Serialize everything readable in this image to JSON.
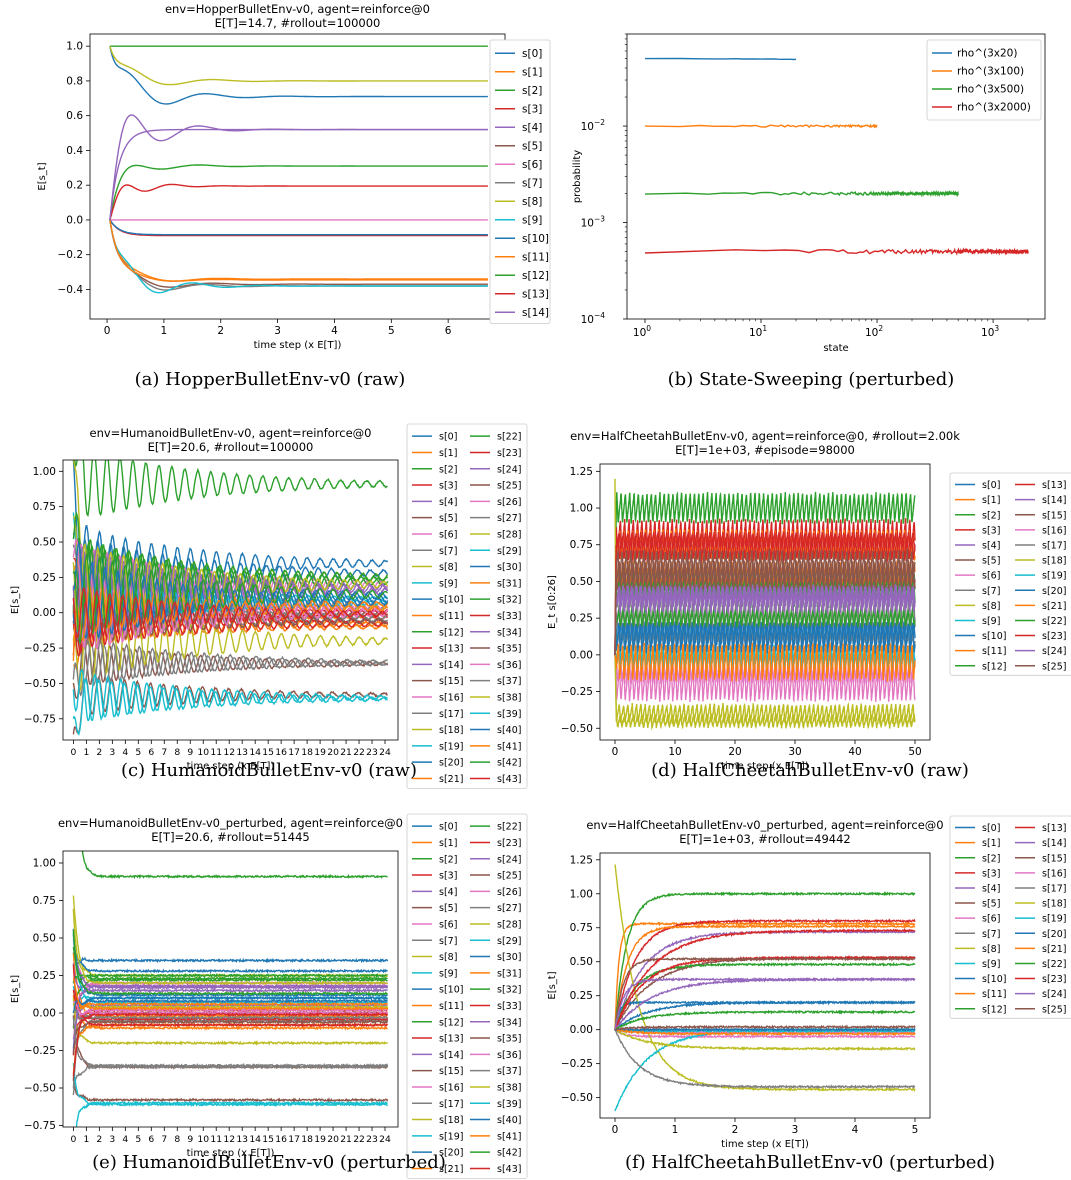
{
  "colors": [
    "#1f77b4",
    "#ff7f0e",
    "#2ca02c",
    "#d62728",
    "#9467bd",
    "#8c564b",
    "#e377c2",
    "#7f7f7f",
    "#bcbd22",
    "#17becf"
  ],
  "chart_data": [
    {
      "id": "a",
      "type": "line",
      "title": "env=HopperBulletEnv-v0, agent=reinforce@0",
      "subtitle": "E[T]=14.7, #rollout=100000",
      "xlabel": "time step (x E[T])",
      "ylabel": "E[s_t]",
      "xlim": [
        -0.3,
        7.0
      ],
      "ylim": [
        -0.57,
        1.07
      ],
      "xticks": [
        0,
        1,
        2,
        3,
        4,
        5,
        6
      ],
      "yticks": [
        -0.4,
        -0.2,
        0.0,
        0.2,
        0.4,
        0.6,
        0.8,
        1.0
      ],
      "ytick_labels": [
        "−0.4",
        "−0.2",
        "0.0",
        "0.2",
        "0.4",
        "0.6",
        "0.8",
        "1.0"
      ],
      "legend": "outside-right",
      "legend_cols": 1,
      "x_end": 6.7,
      "series": [
        {
          "name": "s[0]",
          "start": 1.0,
          "final": 0.71,
          "osc": 0.18,
          "period": 1.4,
          "decay": 1.0
        },
        {
          "name": "s[1]",
          "start": 0.0,
          "final": -0.34,
          "osc": 0.06,
          "period": 1.6,
          "decay": 1.0
        },
        {
          "name": "s[2]",
          "start": 1.0,
          "final": 1.0,
          "osc": 0.0,
          "period": 1.0,
          "decay": 1.0
        },
        {
          "name": "s[3]",
          "start": 0.0,
          "final": -0.09,
          "osc": 0.0,
          "period": 1.0,
          "decay": 1.0
        },
        {
          "name": "s[4]",
          "start": 0.0,
          "final": 0.52,
          "osc": 0.3,
          "period": 1.3,
          "decay": 1.2
        },
        {
          "name": "s[5]",
          "start": 0.0,
          "final": -0.37,
          "osc": 0.08,
          "period": 1.5,
          "decay": 1.0
        },
        {
          "name": "s[6]",
          "start": 0.0,
          "final": 0.0,
          "osc": 0.0,
          "period": 1.0,
          "decay": 1.0
        },
        {
          "name": "s[7]",
          "start": 0.0,
          "final": -0.38,
          "osc": 0.1,
          "period": 1.4,
          "decay": 1.0
        },
        {
          "name": "s[8]",
          "start": 1.0,
          "final": 0.8,
          "osc": 0.1,
          "period": 1.5,
          "decay": 1.0
        },
        {
          "name": "s[9]",
          "start": 0.0,
          "final": -0.38,
          "osc": 0.14,
          "period": 1.2,
          "decay": 1.0
        },
        {
          "name": "s[10]",
          "start": 0.0,
          "final": -0.085,
          "osc": 0.0,
          "period": 1.0,
          "decay": 1.0
        },
        {
          "name": "s[11]",
          "start": 0.0,
          "final": -0.345,
          "osc": 0.04,
          "period": 1.6,
          "decay": 1.0
        },
        {
          "name": "s[12]",
          "start": 0.0,
          "final": 0.31,
          "osc": 0.06,
          "period": 1.3,
          "decay": 1.0
        },
        {
          "name": "s[13]",
          "start": 0.0,
          "final": 0.195,
          "osc": 0.1,
          "period": 0.9,
          "decay": 1.5
        },
        {
          "name": "s[14]",
          "start": 0.0,
          "final": 0.52,
          "osc": 0.0,
          "period": 1.0,
          "decay": 1.0
        }
      ]
    },
    {
      "id": "b",
      "type": "line",
      "title": "",
      "subtitle": "",
      "xlabel": "state",
      "ylabel": "probability",
      "xscale": "log",
      "yscale": "log",
      "xlim": [
        0.7,
        2800
      ],
      "ylim": [
        0.0001,
        0.09
      ],
      "xticks": [
        1,
        10,
        100,
        1000
      ],
      "xtick_labels": [
        "10^0",
        "10^1",
        "10^2",
        "10^3"
      ],
      "yticks": [
        0.0001,
        0.001,
        0.01
      ],
      "ytick_labels": [
        "10^-4",
        "10^-3",
        "10^-2"
      ],
      "legend": "upper-right",
      "series": [
        {
          "name": "rho^(3x20)",
          "n": 20,
          "value": 0.05
        },
        {
          "name": "rho^(3x100)",
          "n": 100,
          "value": 0.01
        },
        {
          "name": "rho^(3x500)",
          "n": 500,
          "value": 0.002
        },
        {
          "name": "rho^(3x2000)",
          "n": 2000,
          "value": 0.0005
        }
      ]
    },
    {
      "id": "c",
      "type": "line",
      "title": "env=HumanoidBulletEnv-v0, agent=reinforce@0",
      "subtitle": "E[T]=20.6, #rollout=100000",
      "xlabel": "time step (x E[T])",
      "ylabel": "E[s_t]",
      "xlim": [
        -0.8,
        25.0
      ],
      "ylim": [
        -0.9,
        1.08
      ],
      "xticks": [
        0,
        1,
        2,
        3,
        4,
        5,
        6,
        7,
        8,
        9,
        10,
        11,
        12,
        13,
        14,
        15,
        16,
        17,
        18,
        19,
        20,
        21,
        22,
        23,
        24
      ],
      "yticks": [
        -0.75,
        -0.5,
        -0.25,
        0.0,
        0.25,
        0.5,
        0.75,
        1.0
      ],
      "ytick_labels": [
        "−0.75",
        "−0.50",
        "−0.25",
        "0.00",
        "0.25",
        "0.50",
        "0.75",
        "1.00"
      ],
      "legend": "outside-right",
      "legend_cols": 2,
      "x_end": 24.2,
      "oscillating": true,
      "series": [
        {
          "name": "s[0]",
          "final": 0.35
        },
        {
          "name": "s[1]",
          "final": -0.1
        },
        {
          "name": "s[2]",
          "final": 0.91
        },
        {
          "name": "s[3]",
          "final": 0.02
        },
        {
          "name": "s[4]",
          "final": 0.05
        },
        {
          "name": "s[5]",
          "final": -0.58
        },
        {
          "name": "s[6]",
          "final": 0.18
        },
        {
          "name": "s[7]",
          "final": -0.05
        },
        {
          "name": "s[8]",
          "final": 0.25
        },
        {
          "name": "s[9]",
          "final": 0.1
        },
        {
          "name": "s[10]",
          "final": 0.28
        },
        {
          "name": "s[11]",
          "final": -0.02
        },
        {
          "name": "s[12]",
          "final": 0.22
        },
        {
          "name": "s[13]",
          "final": 0.0
        },
        {
          "name": "s[14]",
          "final": 0.15
        },
        {
          "name": "s[15]",
          "final": -0.36
        },
        {
          "name": "s[16]",
          "final": 0.2
        },
        {
          "name": "s[17]",
          "final": -0.36
        },
        {
          "name": "s[18]",
          "final": 0.04
        },
        {
          "name": "s[19]",
          "final": -0.61
        },
        {
          "name": "s[20]",
          "final": 0.12
        },
        {
          "name": "s[21]",
          "final": -0.08
        },
        {
          "name": "s[22]",
          "final": 0.25
        },
        {
          "name": "s[23]",
          "final": -0.04
        },
        {
          "name": "s[24]",
          "final": 0.17
        },
        {
          "name": "s[25]",
          "final": 0.0
        },
        {
          "name": "s[26]",
          "final": 0.02
        },
        {
          "name": "s[27]",
          "final": -0.03
        },
        {
          "name": "s[28]",
          "final": -0.2
        },
        {
          "name": "s[29]",
          "final": 0.07
        },
        {
          "name": "s[30]",
          "final": 0.1
        },
        {
          "name": "s[31]",
          "final": 0.06
        },
        {
          "name": "s[32]",
          "final": 0.23
        },
        {
          "name": "s[33]",
          "final": -0.08
        },
        {
          "name": "s[34]",
          "final": 0.18
        },
        {
          "name": "s[35]",
          "final": -0.06
        },
        {
          "name": "s[36]",
          "final": 0.0
        },
        {
          "name": "s[37]",
          "final": -0.35
        },
        {
          "name": "s[38]",
          "final": 0.2
        },
        {
          "name": "s[39]",
          "final": -0.6
        },
        {
          "name": "s[40]",
          "final": 0.08
        },
        {
          "name": "s[41]",
          "final": 0.03
        },
        {
          "name": "s[42]",
          "final": 0.13
        },
        {
          "name": "s[43]",
          "final": -0.01
        }
      ]
    },
    {
      "id": "d",
      "type": "line",
      "title": "env=HalfCheetahBulletEnv-v0, agent=reinforce@0, #rollout=2.00k",
      "subtitle": "E[T]=1e+03, #episode=98000",
      "xlabel": "time step (x E[T])",
      "ylabel": "E_t  s[0:26]",
      "xlim": [
        -2.5,
        52.5
      ],
      "ylim": [
        -0.58,
        1.3
      ],
      "xticks": [
        0,
        10,
        20,
        30,
        40,
        50
      ],
      "yticks": [
        -0.5,
        -0.25,
        0.0,
        0.25,
        0.5,
        0.75,
        1.0,
        1.25
      ],
      "ytick_labels": [
        "−0.50",
        "−0.25",
        "0.00",
        "0.25",
        "0.50",
        "0.75",
        "1.00",
        "1.25"
      ],
      "legend": "outside-right",
      "legend_cols": 2,
      "x_end": 50,
      "oscillating": true,
      "series": [
        {
          "name": "s[0]",
          "final": 0.2
        },
        {
          "name": "s[1]",
          "final": 0.55
        },
        {
          "name": "s[2]",
          "final": 1.0
        },
        {
          "name": "s[3]",
          "final": 0.8
        },
        {
          "name": "s[4]",
          "final": 0.7
        },
        {
          "name": "s[5]",
          "final": 0.5
        },
        {
          "name": "s[6]",
          "final": -0.1
        },
        {
          "name": "s[7]",
          "final": 0.3
        },
        {
          "name": "s[8]",
          "final": -0.45
        },
        {
          "name": "s[9]",
          "final": 0.0
        },
        {
          "name": "s[10]",
          "final": 0.15
        },
        {
          "name": "s[11]",
          "final": 0.75
        },
        {
          "name": "s[12]",
          "final": 0.45
        },
        {
          "name": "s[13]",
          "final": 0.78
        },
        {
          "name": "s[14]",
          "final": 0.4
        },
        {
          "name": "s[15]",
          "final": 0.55
        },
        {
          "name": "s[16]",
          "final": -0.2
        },
        {
          "name": "s[17]",
          "final": 0.1
        },
        {
          "name": "s[18]",
          "final": -0.4
        },
        {
          "name": "s[19]",
          "final": -0.02
        },
        {
          "name": "s[20]",
          "final": 0.12
        },
        {
          "name": "s[21]",
          "final": -0.05
        },
        {
          "name": "s[22]",
          "final": 0.25
        },
        {
          "name": "s[23]",
          "final": 0.72
        },
        {
          "name": "s[24]",
          "final": 0.38
        },
        {
          "name": "s[25]",
          "final": 0.6
        }
      ]
    },
    {
      "id": "e",
      "type": "line",
      "title": "env=HumanoidBulletEnv-v0_perturbed, agent=reinforce@0",
      "subtitle": "E[T]=20.6, #rollout=51445",
      "xlabel": "time step (x E[T])",
      "ylabel": "E[s_t]",
      "xlim": [
        -0.8,
        25.0
      ],
      "ylim": [
        -0.76,
        1.08
      ],
      "xticks": [
        0,
        1,
        2,
        3,
        4,
        5,
        6,
        7,
        8,
        9,
        10,
        11,
        12,
        13,
        14,
        15,
        16,
        17,
        18,
        19,
        20,
        21,
        22,
        23,
        24
      ],
      "yticks": [
        -0.75,
        -0.5,
        -0.25,
        0.0,
        0.25,
        0.5,
        0.75,
        1.0
      ],
      "ytick_labels": [
        "−0.75",
        "−0.50",
        "−0.25",
        "0.00",
        "0.25",
        "0.50",
        "0.75",
        "1.00"
      ],
      "legend": "outside-right",
      "legend_cols": 2,
      "x_end": 24.2,
      "oscillating": false,
      "series": [
        {
          "name": "s[0]",
          "final": 0.35
        },
        {
          "name": "s[1]",
          "final": -0.1
        },
        {
          "name": "s[2]",
          "final": 0.91
        },
        {
          "name": "s[3]",
          "final": 0.02
        },
        {
          "name": "s[4]",
          "final": 0.05
        },
        {
          "name": "s[5]",
          "final": -0.58
        },
        {
          "name": "s[6]",
          "final": 0.18
        },
        {
          "name": "s[7]",
          "final": -0.05
        },
        {
          "name": "s[8]",
          "final": 0.25
        },
        {
          "name": "s[9]",
          "final": 0.1
        },
        {
          "name": "s[10]",
          "final": 0.28
        },
        {
          "name": "s[11]",
          "final": -0.02
        },
        {
          "name": "s[12]",
          "final": 0.22
        },
        {
          "name": "s[13]",
          "final": 0.0
        },
        {
          "name": "s[14]",
          "final": 0.15
        },
        {
          "name": "s[15]",
          "final": -0.36
        },
        {
          "name": "s[16]",
          "final": 0.2
        },
        {
          "name": "s[17]",
          "final": -0.36
        },
        {
          "name": "s[18]",
          "final": 0.04
        },
        {
          "name": "s[19]",
          "final": -0.61
        },
        {
          "name": "s[20]",
          "final": 0.12
        },
        {
          "name": "s[21]",
          "final": -0.08
        },
        {
          "name": "s[22]",
          "final": 0.25
        },
        {
          "name": "s[23]",
          "final": -0.04
        },
        {
          "name": "s[24]",
          "final": 0.17
        },
        {
          "name": "s[25]",
          "final": 0.0
        },
        {
          "name": "s[26]",
          "final": 0.02
        },
        {
          "name": "s[27]",
          "final": -0.03
        },
        {
          "name": "s[28]",
          "final": -0.2
        },
        {
          "name": "s[29]",
          "final": 0.07
        },
        {
          "name": "s[30]",
          "final": 0.1
        },
        {
          "name": "s[31]",
          "final": 0.06
        },
        {
          "name": "s[32]",
          "final": 0.23
        },
        {
          "name": "s[33]",
          "final": -0.08
        },
        {
          "name": "s[34]",
          "final": 0.18
        },
        {
          "name": "s[35]",
          "final": -0.06
        },
        {
          "name": "s[36]",
          "final": 0.0
        },
        {
          "name": "s[37]",
          "final": -0.35
        },
        {
          "name": "s[38]",
          "final": 0.2
        },
        {
          "name": "s[39]",
          "final": -0.6
        },
        {
          "name": "s[40]",
          "final": 0.08
        },
        {
          "name": "s[41]",
          "final": 0.03
        },
        {
          "name": "s[42]",
          "final": 0.13
        },
        {
          "name": "s[43]",
          "final": -0.01
        }
      ]
    },
    {
      "id": "f",
      "type": "line",
      "title": "env=HalfCheetahBulletEnv-v0_perturbed, agent=reinforce@0",
      "subtitle": "E[T]=1e+03, #rollout=49442",
      "xlabel": "time step (x E[T])",
      "ylabel": "E[s_t]",
      "xlim": [
        -0.25,
        5.25
      ],
      "ylim": [
        -0.65,
        1.3
      ],
      "xticks": [
        0,
        1,
        2,
        3,
        4,
        5
      ],
      "yticks": [
        -0.5,
        -0.25,
        0.0,
        0.25,
        0.5,
        0.75,
        1.0,
        1.25
      ],
      "ytick_labels": [
        "−0.50",
        "−0.25",
        "0.00",
        "0.25",
        "0.50",
        "0.75",
        "1.00",
        "1.25"
      ],
      "legend": "outside-right",
      "legend_cols": 2,
      "x_end": 5,
      "oscillating": false,
      "series": [
        {
          "name": "s[0]",
          "final": 0.2
        },
        {
          "name": "s[1]",
          "final": 0.78
        },
        {
          "name": "s[2]",
          "final": 1.0
        },
        {
          "name": "s[3]",
          "final": 0.8
        },
        {
          "name": "s[4]",
          "final": 0.72
        },
        {
          "name": "s[5]",
          "final": 0.53
        },
        {
          "name": "s[6]",
          "final": -0.05
        },
        {
          "name": "s[7]",
          "final": 0.0
        },
        {
          "name": "s[8]",
          "final": -0.44
        },
        {
          "name": "s[9]",
          "final": 0.0
        },
        {
          "name": "s[10]",
          "final": 0.2
        },
        {
          "name": "s[11]",
          "final": 0.76
        },
        {
          "name": "s[12]",
          "final": 0.48
        },
        {
          "name": "s[13]",
          "final": 0.53
        },
        {
          "name": "s[14]",
          "final": 0.37
        },
        {
          "name": "s[15]",
          "final": 0.52
        },
        {
          "name": "s[16]",
          "final": -0.02
        },
        {
          "name": "s[17]",
          "final": -0.42
        },
        {
          "name": "s[18]",
          "final": -0.14
        },
        {
          "name": "s[19]",
          "final": -0.01
        },
        {
          "name": "s[20]",
          "final": 0.0
        },
        {
          "name": "s[21]",
          "final": -0.03
        },
        {
          "name": "s[22]",
          "final": 0.13
        },
        {
          "name": "s[23]",
          "final": 0.73
        },
        {
          "name": "s[24]",
          "final": 0.37
        },
        {
          "name": "s[25]",
          "final": 0.02
        }
      ]
    }
  ],
  "captions": [
    "(a) HopperBulletEnv-v0 (raw)",
    "(b) State-Sweeping (perturbed)",
    "(c) HumanoidBulletEnv-v0 (raw)",
    "(d) HalfCheetahBulletEnv-v0 (raw)",
    "(e) HumanoidBulletEnv-v0 (perturbed)",
    "(f) HalfCheetahBulletEnv-v0 (perturbed)"
  ]
}
